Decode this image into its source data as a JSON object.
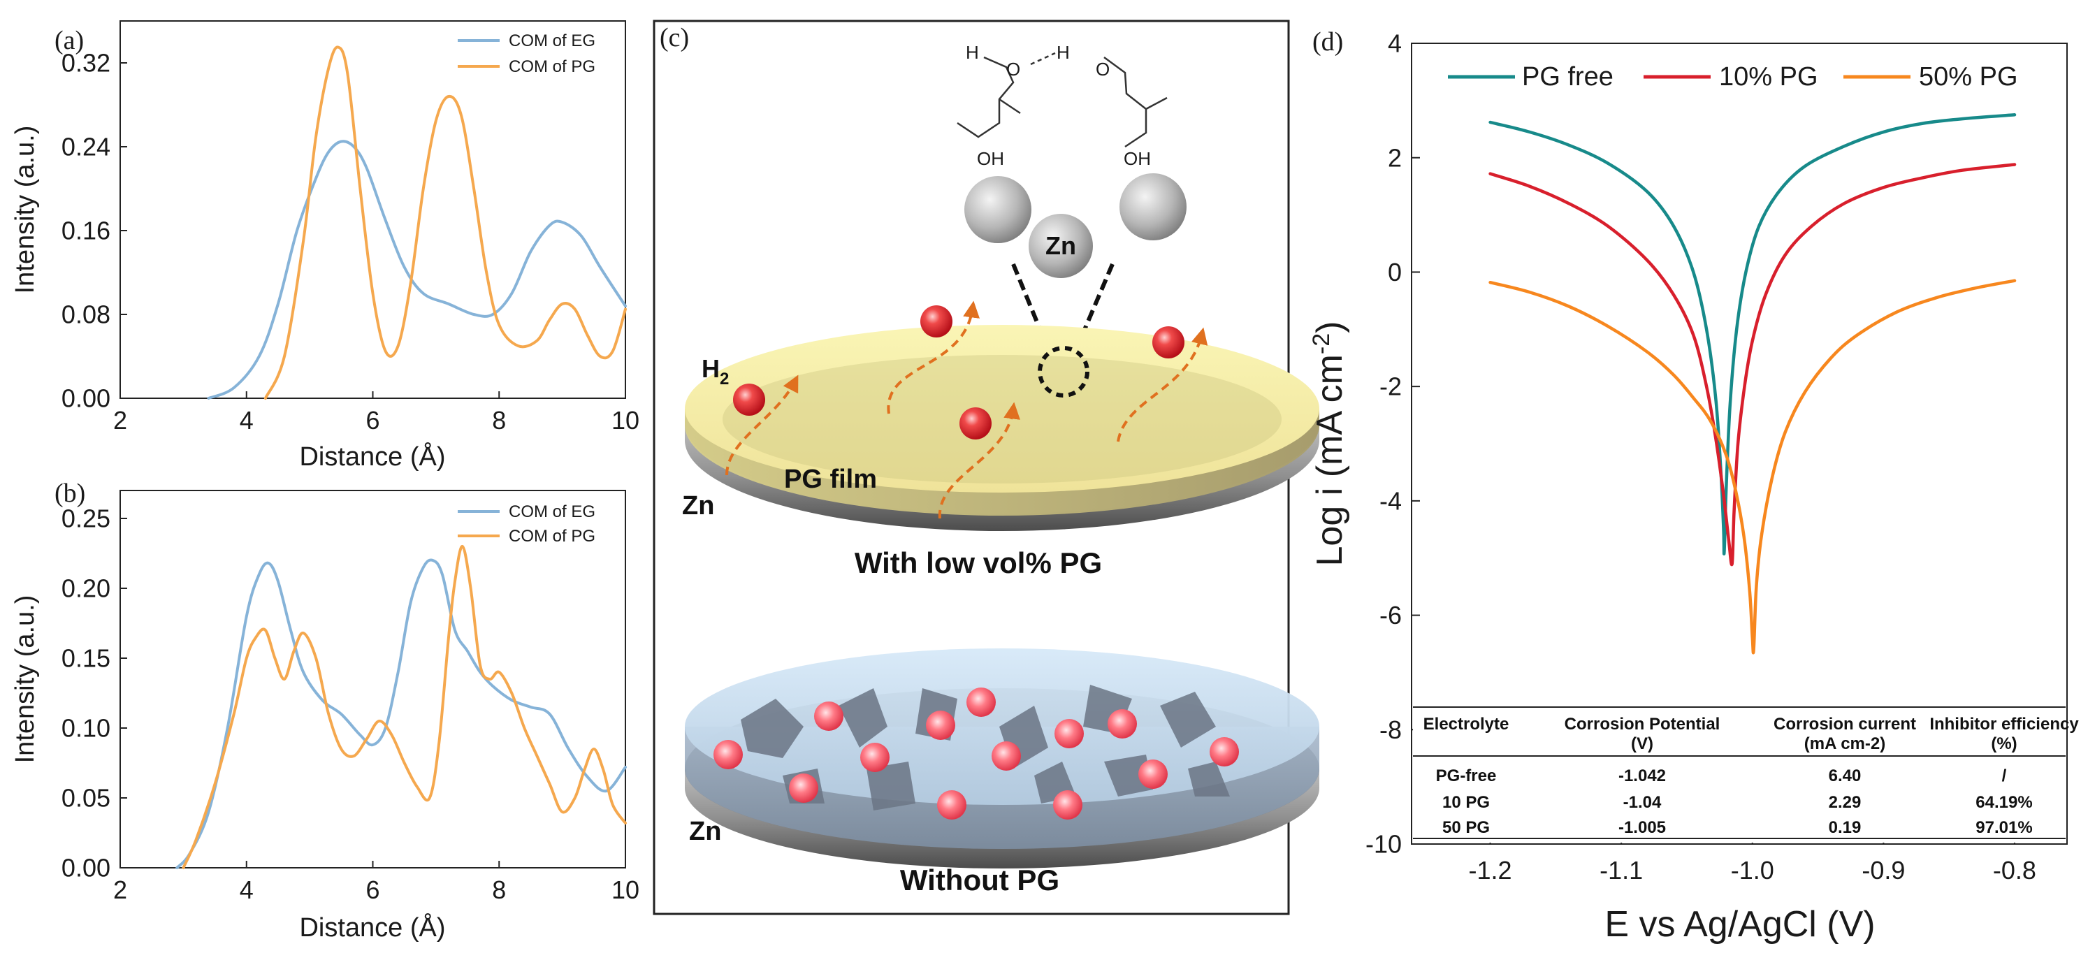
{
  "panels": {
    "a": {
      "label": "(a)"
    },
    "b": {
      "label": "(b)"
    },
    "c": {
      "label": "(c)"
    },
    "d": {
      "label": "(d)"
    }
  },
  "schematic": {
    "zn_center": "Zn",
    "h2": "H",
    "h2_sub": "2",
    "oh_left": "OH",
    "oh_right": "OH",
    "h_left": "H",
    "h_right": "H",
    "o_left": "O",
    "o_right": "O",
    "pg_film": "PG film",
    "zn_top": "Zn",
    "caption_top": "With low vol% PG",
    "zn_bottom": "Zn",
    "caption_bottom": "Without PG"
  },
  "colors": {
    "eg_blue": "#86b3d8",
    "pg_orange": "#f5a84e",
    "pg_free": "#178a8a",
    "pg10": "#d81f2c",
    "pg50": "#f7871e",
    "bubble": "#e8242f",
    "arrow": "#e0701f"
  },
  "chart_data": [
    {
      "id": "a",
      "type": "line",
      "xlabel": "Distance (Å)",
      "ylabel": "Intensity (a.u.)",
      "xlim": [
        2,
        10
      ],
      "ylim": [
        0,
        0.36
      ],
      "xticks": [
        "2",
        "4",
        "6",
        "8",
        "10"
      ],
      "yticks": [
        "0.00",
        "0.08",
        "0.16",
        "0.24",
        "0.32"
      ],
      "legend_position": "top-right",
      "series": [
        {
          "name": "COM of EG",
          "color": "#86b3d8",
          "x": [
            3.4,
            3.8,
            4.2,
            4.5,
            4.8,
            5.1,
            5.3,
            5.5,
            5.7,
            5.9,
            6.2,
            6.5,
            6.8,
            7.2,
            7.6,
            7.9,
            8.2,
            8.5,
            8.8,
            9.0,
            9.3,
            9.6,
            10.0
          ],
          "y": [
            0.0,
            0.01,
            0.04,
            0.09,
            0.16,
            0.21,
            0.235,
            0.245,
            0.24,
            0.22,
            0.17,
            0.125,
            0.1,
            0.09,
            0.08,
            0.08,
            0.1,
            0.14,
            0.165,
            0.168,
            0.155,
            0.125,
            0.088
          ]
        },
        {
          "name": "COM of PG",
          "color": "#f5a84e",
          "x": [
            4.3,
            4.6,
            4.9,
            5.1,
            5.3,
            5.45,
            5.6,
            5.8,
            6.0,
            6.2,
            6.4,
            6.6,
            6.8,
            7.0,
            7.2,
            7.4,
            7.6,
            7.8,
            8.0,
            8.3,
            8.6,
            8.8,
            9.0,
            9.2,
            9.4,
            9.6,
            9.8,
            10.0
          ],
          "y": [
            0.0,
            0.04,
            0.15,
            0.25,
            0.315,
            0.335,
            0.31,
            0.2,
            0.1,
            0.045,
            0.05,
            0.11,
            0.2,
            0.265,
            0.288,
            0.27,
            0.2,
            0.12,
            0.07,
            0.05,
            0.055,
            0.075,
            0.09,
            0.085,
            0.06,
            0.04,
            0.045,
            0.085
          ]
        }
      ]
    },
    {
      "id": "b",
      "type": "line",
      "xlabel": "Distance (Å)",
      "ylabel": "Intensity (a.u.)",
      "xlim": [
        2,
        10
      ],
      "ylim": [
        0,
        0.27
      ],
      "xticks": [
        "2",
        "4",
        "6",
        "8",
        "10"
      ],
      "yticks": [
        "0.00",
        "0.05",
        "0.10",
        "0.15",
        "0.20",
        "0.25"
      ],
      "legend_position": "top-right",
      "series": [
        {
          "name": "COM of EG",
          "color": "#86b3d8",
          "x": [
            2.9,
            3.1,
            3.4,
            3.7,
            4.0,
            4.2,
            4.35,
            4.5,
            4.7,
            4.9,
            5.2,
            5.5,
            5.8,
            6.0,
            6.2,
            6.4,
            6.6,
            6.8,
            6.95,
            7.1,
            7.3,
            7.5,
            7.7,
            7.9,
            8.2,
            8.5,
            8.8,
            9.1,
            9.4,
            9.7,
            10.0
          ],
          "y": [
            0.0,
            0.01,
            0.04,
            0.1,
            0.18,
            0.21,
            0.218,
            0.205,
            0.17,
            0.14,
            0.12,
            0.11,
            0.095,
            0.088,
            0.1,
            0.14,
            0.19,
            0.215,
            0.22,
            0.21,
            0.17,
            0.155,
            0.14,
            0.13,
            0.12,
            0.115,
            0.11,
            0.085,
            0.065,
            0.055,
            0.072
          ]
        },
        {
          "name": "COM of PG",
          "color": "#f5a84e",
          "x": [
            3.0,
            3.2,
            3.5,
            3.8,
            4.0,
            4.15,
            4.3,
            4.45,
            4.6,
            4.75,
            4.9,
            5.1,
            5.3,
            5.5,
            5.7,
            5.9,
            6.1,
            6.3,
            6.5,
            6.7,
            6.9,
            7.05,
            7.2,
            7.3,
            7.42,
            7.55,
            7.7,
            7.85,
            8.0,
            8.2,
            8.4,
            8.6,
            8.8,
            9.0,
            9.2,
            9.35,
            9.5,
            9.65,
            9.8,
            10.0
          ],
          "y": [
            0.0,
            0.02,
            0.06,
            0.11,
            0.15,
            0.165,
            0.17,
            0.15,
            0.135,
            0.155,
            0.168,
            0.15,
            0.11,
            0.085,
            0.08,
            0.092,
            0.105,
            0.095,
            0.075,
            0.058,
            0.05,
            0.09,
            0.165,
            0.205,
            0.23,
            0.2,
            0.145,
            0.135,
            0.14,
            0.125,
            0.1,
            0.08,
            0.06,
            0.04,
            0.05,
            0.07,
            0.085,
            0.07,
            0.045,
            0.032
          ]
        }
      ]
    },
    {
      "id": "d",
      "type": "line",
      "xlabel": "E vs Ag/AgCl (V)",
      "ylabel": "Log i (mA cm",
      "ylabel_sup": "-2",
      "ylabel_end": ")",
      "xlim": [
        -1.26,
        -0.76
      ],
      "ylim": [
        -10,
        4
      ],
      "xticks": [
        "-1.2",
        "-1.1",
        "-1.0",
        "-0.9",
        "-0.8"
      ],
      "yticks": [
        "-10",
        "-8",
        "-6",
        "-4",
        "-2",
        "0",
        "2",
        "4"
      ],
      "legend_position": "top",
      "series": [
        {
          "name": "PG free",
          "color": "#178a8a",
          "x": [
            -1.2,
            -1.17,
            -1.14,
            -1.11,
            -1.08,
            -1.06,
            -1.045,
            -1.035,
            -1.028,
            -1.024,
            -1.022,
            -1.0215,
            -1.02,
            -1.017,
            -1.012,
            -1.005,
            -0.995,
            -0.98,
            -0.96,
            -0.93,
            -0.9,
            -0.87,
            -0.84,
            -0.8
          ],
          "y": [
            2.62,
            2.45,
            2.22,
            1.9,
            1.4,
            0.8,
            0.0,
            -1.0,
            -2.2,
            -3.5,
            -4.5,
            -4.9,
            -3.8,
            -2.3,
            -1.0,
            0.0,
            0.8,
            1.4,
            1.85,
            2.2,
            2.45,
            2.6,
            2.68,
            2.75
          ]
        },
        {
          "name": "10% PG",
          "color": "#d81f2c",
          "x": [
            -1.2,
            -1.17,
            -1.14,
            -1.11,
            -1.08,
            -1.06,
            -1.045,
            -1.035,
            -1.028,
            -1.022,
            -1.018,
            -1.0155,
            -1.014,
            -1.011,
            -1.006,
            -1.0,
            -0.99,
            -0.975,
            -0.955,
            -0.93,
            -0.9,
            -0.87,
            -0.84,
            -0.8
          ],
          "y": [
            1.72,
            1.5,
            1.2,
            0.8,
            0.2,
            -0.4,
            -1.1,
            -2.0,
            -2.9,
            -3.9,
            -4.7,
            -5.1,
            -4.2,
            -3.0,
            -2.0,
            -1.2,
            -0.4,
            0.3,
            0.8,
            1.2,
            1.48,
            1.65,
            1.78,
            1.88
          ]
        },
        {
          "name": "50% PG",
          "color": "#f7871e",
          "x": [
            -1.2,
            -1.17,
            -1.14,
            -1.11,
            -1.08,
            -1.06,
            -1.045,
            -1.032,
            -1.02,
            -1.012,
            -1.006,
            -1.002,
            -1.0,
            -0.999,
            -0.997,
            -0.993,
            -0.985,
            -0.975,
            -0.96,
            -0.94,
            -0.92,
            -0.89,
            -0.86,
            -0.83,
            -0.8
          ],
          "y": [
            -0.18,
            -0.35,
            -0.6,
            -0.95,
            -1.4,
            -1.8,
            -2.2,
            -2.6,
            -3.2,
            -3.9,
            -4.7,
            -5.6,
            -6.4,
            -6.6,
            -5.5,
            -4.6,
            -3.6,
            -2.8,
            -2.1,
            -1.5,
            -1.1,
            -0.7,
            -0.45,
            -0.28,
            -0.15
          ]
        }
      ],
      "table": {
        "headers": [
          [
            "Electrolyte",
            ""
          ],
          [
            "Corrosion Potential",
            "(V)"
          ],
          [
            "Corrosion current",
            "(mA cm-2)"
          ],
          [
            "Inhibitor efficiency",
            "(%)"
          ]
        ],
        "rows": [
          [
            "PG-free",
            "-1.042",
            "6.40",
            "/"
          ],
          [
            "10 PG",
            "-1.04",
            "2.29",
            "64.19%"
          ],
          [
            "50 PG",
            "-1.005",
            "0.19",
            "97.01%"
          ]
        ]
      }
    }
  ]
}
